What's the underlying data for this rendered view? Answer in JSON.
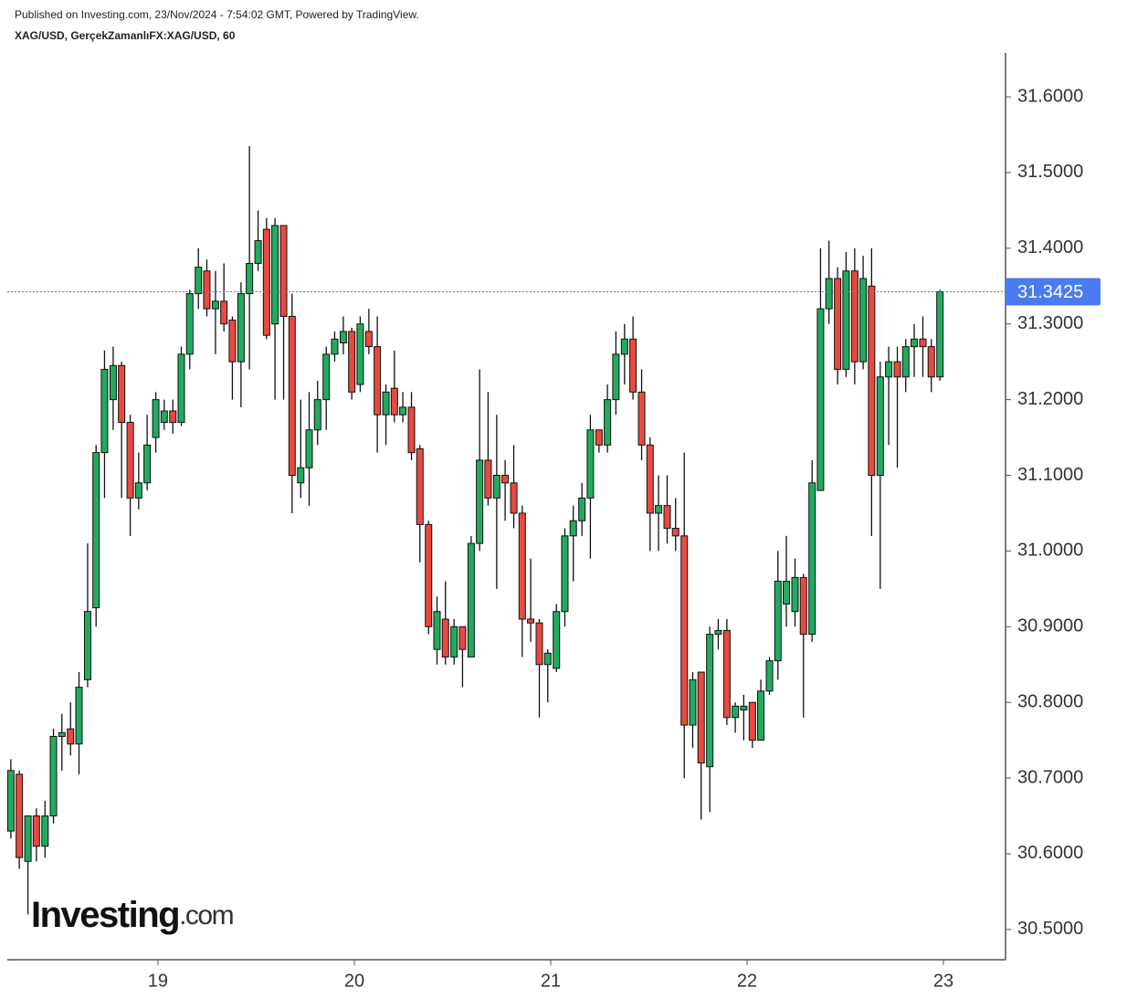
{
  "chart_data": {
    "type": "candlestick",
    "published": "Published on Investing.com, 23/Nov/2024 - 7:54:02 GMT, Powered by TradingView.",
    "title": "XAG/USD, GerçekZamanlıFX:XAG/USD, 60",
    "logo": {
      "brand": "Investing",
      "suffix": ".com"
    },
    "up_color": "#22ab5e",
    "down_color": "#e84a3f",
    "border_color": "#111111",
    "xlim": [
      18.233,
      23.316
    ],
    "xticks": [
      19,
      20,
      21,
      22,
      23
    ],
    "ylim": [
      30.46,
      31.658
    ],
    "yticks": [
      {
        "value": 30.5,
        "label": "30.5000"
      },
      {
        "value": 30.6,
        "label": "30.6000"
      },
      {
        "value": 30.7,
        "label": "30.7000"
      },
      {
        "value": 30.8,
        "label": "30.8000"
      },
      {
        "value": 30.9,
        "label": "30.9000"
      },
      {
        "value": 31.0,
        "label": "31.0000"
      },
      {
        "value": 31.1,
        "label": "31.1000"
      },
      {
        "value": 31.2,
        "label": "31.2000"
      },
      {
        "value": 31.3,
        "label": "31.3000"
      },
      {
        "value": 31.4,
        "label": "31.4000"
      },
      {
        "value": 31.5,
        "label": "31.5000"
      },
      {
        "value": 31.6,
        "label": "31.6000"
      }
    ],
    "last_price": 31.3425,
    "last_price_color": "#4a7cf0",
    "x": [
      18.251,
      18.294,
      18.338,
      18.381,
      18.425,
      18.468,
      18.511,
      18.555,
      18.598,
      18.642,
      18.685,
      18.728,
      18.772,
      18.815,
      18.859,
      18.902,
      18.945,
      18.989,
      19.032,
      19.076,
      19.119,
      19.162,
      19.206,
      19.249,
      19.293,
      19.336,
      19.379,
      19.423,
      19.466,
      19.51,
      19.553,
      19.596,
      19.64,
      19.683,
      19.727,
      19.77,
      19.813,
      19.857,
      19.9,
      19.944,
      19.987,
      20.03,
      20.074,
      20.117,
      20.161,
      20.204,
      20.247,
      20.291,
      20.334,
      20.378,
      20.421,
      20.464,
      20.508,
      20.551,
      20.595,
      20.638,
      20.681,
      20.725,
      20.768,
      20.812,
      20.855,
      20.898,
      20.942,
      20.985,
      21.029,
      21.072,
      21.115,
      21.159,
      21.202,
      21.246,
      21.289,
      21.332,
      21.376,
      21.419,
      21.463,
      21.506,
      21.549,
      21.593,
      21.636,
      21.68,
      21.723,
      21.766,
      21.81,
      21.853,
      21.897,
      21.94,
      21.983,
      22.027,
      22.07,
      22.114,
      22.157,
      22.2,
      22.244,
      22.287,
      22.331,
      22.374,
      22.417,
      22.461,
      22.504,
      22.548,
      22.591,
      22.634,
      22.678,
      22.721,
      22.765,
      22.808,
      22.851,
      22.895,
      22.938,
      22.982
    ],
    "open": [
      30.63,
      30.705,
      30.59,
      30.65,
      30.61,
      30.65,
      30.755,
      30.765,
      30.745,
      30.83,
      30.925,
      31.13,
      31.2,
      31.245,
      31.17,
      31.07,
      31.09,
      31.15,
      31.17,
      31.185,
      31.17,
      31.26,
      31.34,
      31.37,
      31.32,
      31.33,
      31.305,
      31.25,
      31.34,
      31.38,
      31.425,
      31.3,
      31.43,
      31.31,
      31.09,
      31.11,
      31.16,
      31.2,
      31.26,
      31.275,
      31.29,
      31.22,
      31.29,
      31.27,
      31.18,
      31.215,
      31.18,
      31.19,
      31.135,
      31.035,
      30.87,
      30.91,
      30.86,
      30.9,
      30.86,
      31.01,
      31.12,
      31.07,
      31.1,
      31.09,
      31.05,
      30.91,
      30.905,
      30.85,
      30.845,
      30.92,
      31.02,
      31.04,
      31.07,
      31.16,
      31.14,
      31.2,
      31.26,
      31.28,
      31.21,
      31.14,
      31.05,
      31.06,
      31.03,
      31.02,
      30.77,
      30.84,
      30.715,
      30.89,
      30.895,
      30.78,
      30.79,
      30.8,
      30.75,
      30.815,
      30.855,
      30.93,
      30.92,
      30.965,
      30.89,
      31.08,
      31.32,
      31.36,
      31.24,
      31.37,
      31.25,
      31.35,
      31.1,
      31.23,
      31.25,
      31.23,
      31.27,
      31.28,
      31.27,
      31.23
    ],
    "high": [
      30.725,
      30.71,
      30.65,
      30.66,
      30.67,
      30.765,
      30.785,
      30.8,
      30.84,
      31.01,
      31.14,
      31.265,
      31.27,
      31.25,
      31.18,
      31.13,
      31.18,
      31.21,
      31.2,
      31.2,
      31.27,
      31.345,
      31.4,
      31.385,
      31.37,
      31.38,
      31.31,
      31.355,
      31.535,
      31.45,
      31.44,
      31.44,
      31.43,
      31.34,
      31.2,
      31.21,
      31.225,
      31.27,
      31.29,
      31.31,
      31.295,
      31.31,
      31.32,
      31.31,
      31.22,
      31.265,
      31.21,
      31.21,
      31.14,
      31.04,
      30.94,
      30.96,
      30.91,
      30.9,
      31.02,
      31.24,
      31.21,
      31.18,
      31.12,
      31.14,
      31.06,
      30.99,
      30.91,
      30.87,
      30.93,
      31.03,
      31.06,
      31.09,
      31.18,
      31.16,
      31.22,
      31.29,
      31.3,
      31.31,
      31.24,
      31.15,
      31.1,
      31.1,
      31.07,
      31.13,
      30.84,
      30.84,
      30.9,
      30.91,
      30.91,
      30.8,
      30.81,
      30.8,
      30.83,
      30.86,
      31.0,
      31.02,
      30.99,
      30.97,
      31.12,
      31.4,
      31.41,
      31.375,
      31.395,
      31.4,
      31.39,
      31.4,
      31.25,
      31.27,
      31.27,
      31.28,
      31.3,
      31.31,
      31.28,
      31.345
    ],
    "low": [
      30.62,
      30.58,
      30.52,
      30.59,
      30.595,
      30.64,
      30.71,
      30.73,
      30.705,
      30.82,
      30.9,
      31.07,
      31.16,
      31.07,
      31.02,
      31.055,
      31.08,
      31.13,
      31.16,
      31.155,
      31.165,
      31.24,
      31.32,
      31.31,
      31.26,
      31.29,
      31.2,
      31.19,
      31.24,
      31.37,
      31.28,
      31.2,
      31.2,
      31.05,
      31.07,
      31.06,
      31.14,
      31.16,
      31.25,
      31.26,
      31.2,
      31.21,
      31.26,
      31.13,
      31.14,
      31.17,
      31.17,
      31.12,
      30.985,
      30.89,
      30.85,
      30.85,
      30.85,
      30.82,
      30.86,
      31.0,
      31.06,
      30.95,
      31.04,
      31.03,
      30.86,
      30.88,
      30.78,
      30.8,
      30.84,
      30.9,
      30.96,
      31.02,
      30.99,
      31.13,
      31.13,
      31.18,
      31.22,
      31.2,
      31.12,
      31.0,
      31.0,
      31.01,
      31.0,
      30.7,
      30.74,
      30.645,
      30.655,
      30.87,
      30.77,
      30.76,
      30.75,
      30.74,
      30.75,
      30.81,
      30.83,
      30.9,
      30.9,
      30.78,
      30.88,
      31.08,
      31.3,
      31.22,
      31.23,
      31.22,
      31.24,
      31.02,
      30.95,
      31.14,
      31.11,
      31.21,
      31.23,
      31.23,
      31.21,
      31.225
    ],
    "close": [
      30.71,
      30.595,
      30.65,
      30.61,
      30.65,
      30.755,
      30.76,
      30.745,
      30.82,
      30.92,
      31.13,
      31.24,
      31.245,
      31.17,
      31.07,
      31.09,
      31.14,
      31.2,
      31.185,
      31.17,
      31.26,
      31.34,
      31.375,
      31.32,
      31.33,
      31.3,
      31.25,
      31.34,
      31.38,
      31.41,
      31.285,
      31.43,
      31.31,
      31.1,
      31.11,
      31.16,
      31.2,
      31.26,
      31.28,
      31.29,
      31.21,
      31.3,
      31.27,
      31.18,
      31.21,
      31.18,
      31.19,
      31.13,
      31.035,
      30.9,
      30.92,
      30.86,
      30.9,
      30.87,
      31.01,
      31.12,
      31.07,
      31.1,
      31.09,
      31.05,
      30.91,
      30.905,
      30.85,
      30.865,
      30.92,
      31.02,
      31.04,
      31.07,
      31.16,
      31.14,
      31.2,
      31.26,
      31.28,
      31.21,
      31.14,
      31.05,
      31.06,
      31.03,
      31.02,
      30.77,
      30.83,
      30.72,
      30.89,
      30.895,
      30.78,
      30.795,
      30.795,
      30.75,
      30.815,
      30.855,
      30.96,
      30.96,
      30.965,
      30.89,
      31.09,
      31.32,
      31.36,
      31.24,
      31.37,
      31.25,
      31.36,
      31.1,
      31.23,
      31.25,
      31.23,
      31.27,
      31.28,
      31.27,
      31.23,
      31.3425
    ]
  }
}
